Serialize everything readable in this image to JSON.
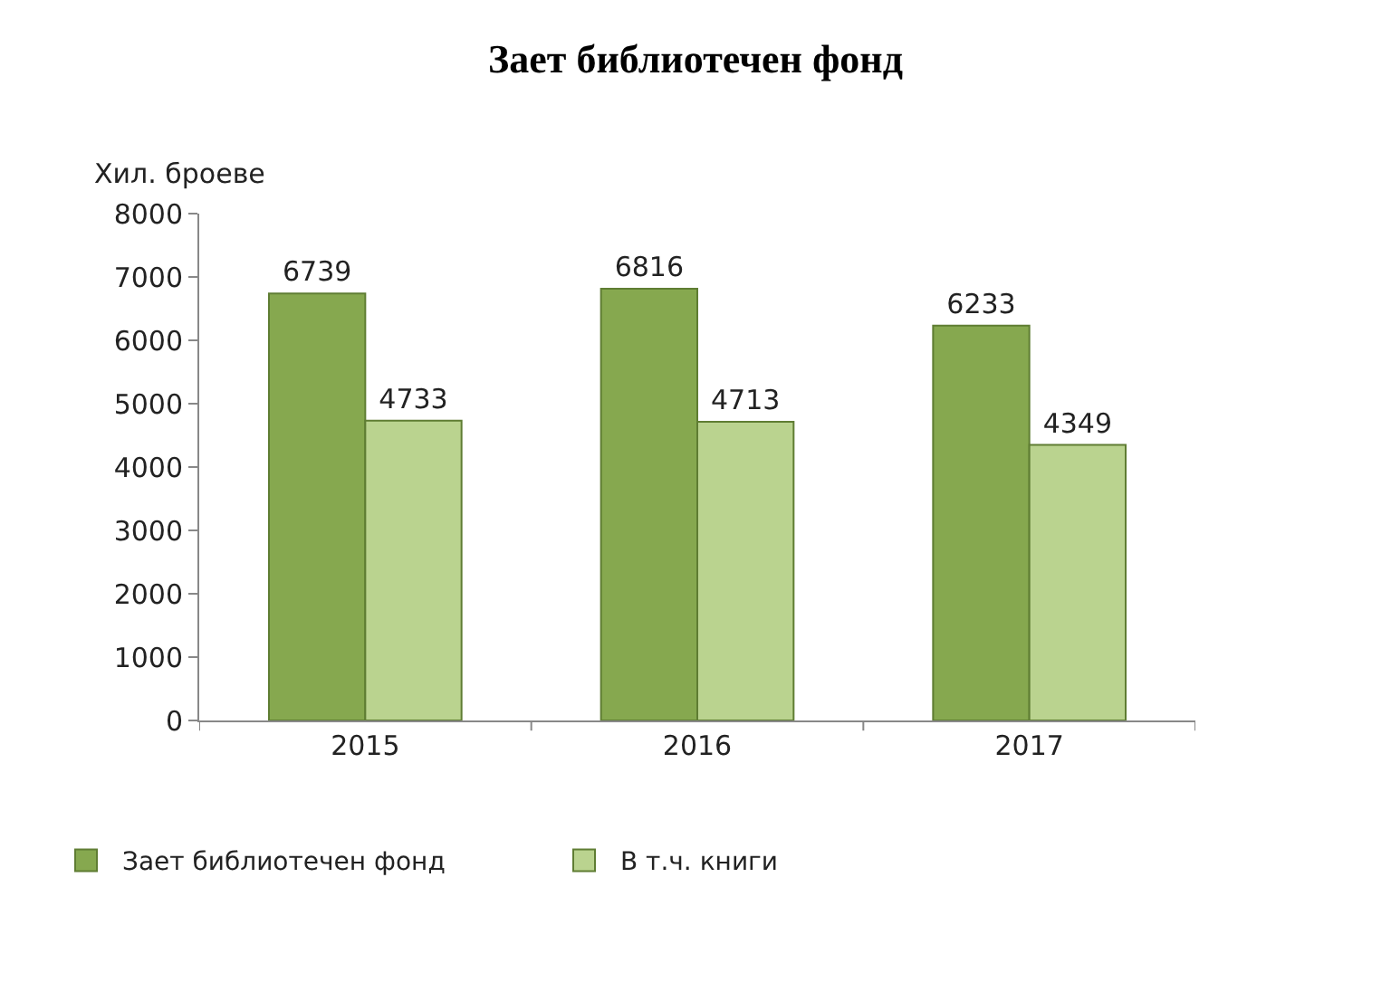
{
  "chart_data": {
    "type": "bar",
    "title": "Зает библиотечен фонд",
    "ylabel": "Хил. броеве",
    "categories": [
      "2015",
      "2016",
      "2017"
    ],
    "series": [
      {
        "name": "Зает библиотечен фонд",
        "color": "#86a84f",
        "values": [
          6739,
          6816,
          6233
        ]
      },
      {
        "name": "В т.ч. книги",
        "color": "#bad38f",
        "values": [
          4733,
          4713,
          4349
        ]
      }
    ],
    "ylim": [
      0,
      8000
    ],
    "yticks": [
      0,
      1000,
      2000,
      3000,
      4000,
      5000,
      6000,
      7000,
      8000
    ],
    "legend": "bottom left",
    "data_labels": true
  }
}
